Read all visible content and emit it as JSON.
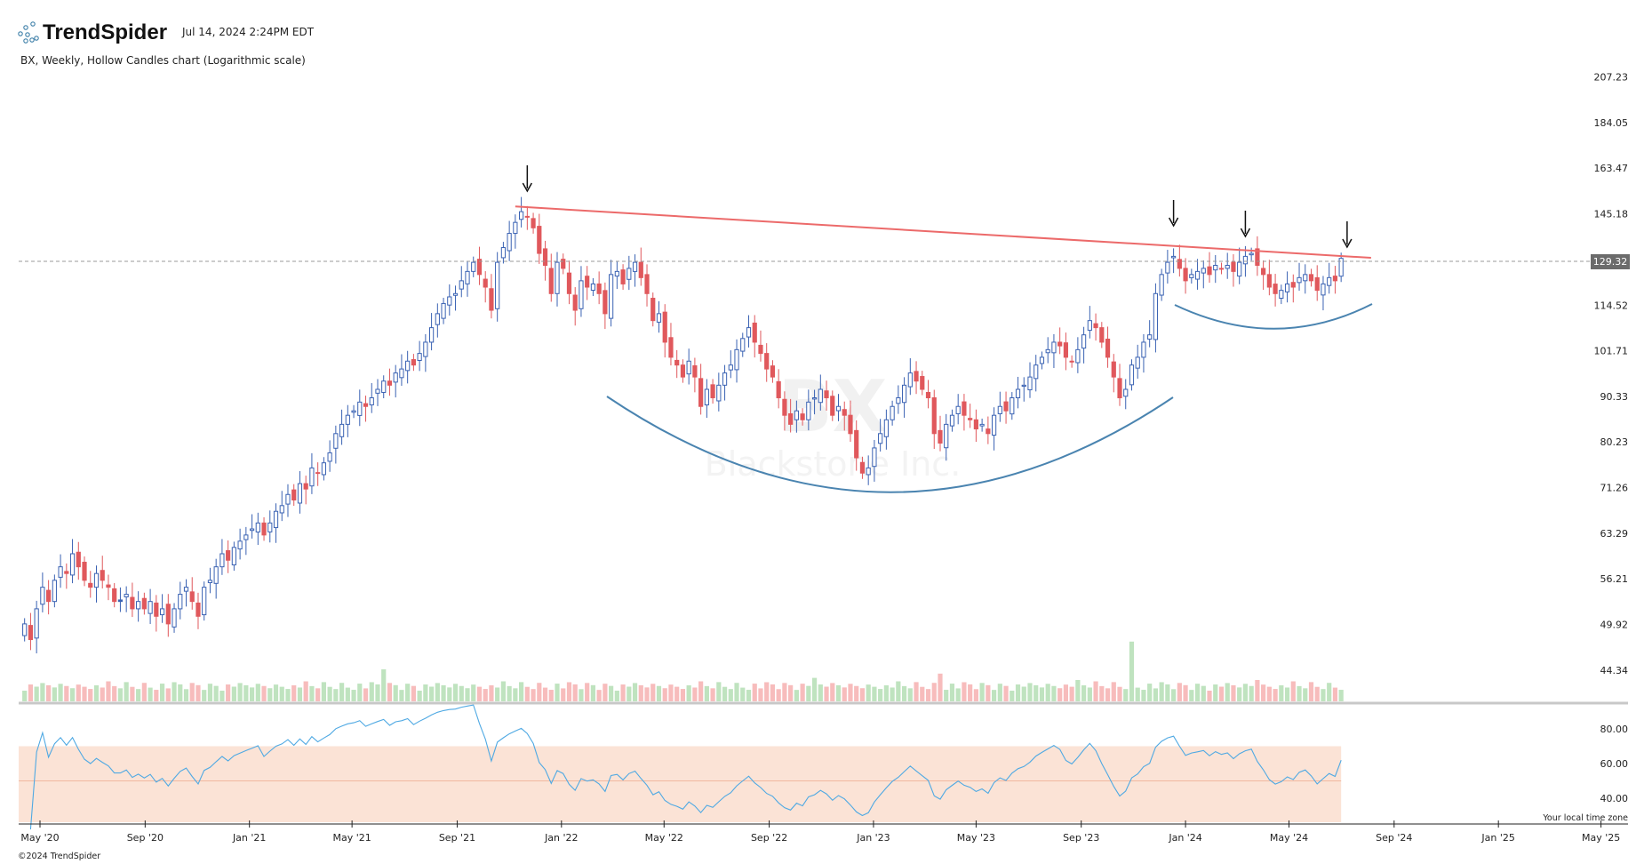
{
  "header": {
    "brand": "TrendSpider",
    "timestamp": "Jul 14, 2024 2:24PM EDT",
    "chart_title": "BX, Weekly, Hollow Candles chart (Logarithmic scale)"
  },
  "footer": {
    "copyright": "©2024 TrendSpider",
    "timezone_note": "Your local time zone"
  },
  "watermark": {
    "symbol": "BX",
    "name": "Blackstone Inc."
  },
  "colors": {
    "up": "#3a62b3",
    "down": "#e0585c",
    "vol_up": "#bfe3bf",
    "vol_down": "#f7bcbc",
    "rsi": "#4fa9e3",
    "rsi_band": "#fbe3d6",
    "trendline": "#ec6a6a",
    "curve": "#4a84b0",
    "last_price_bg": "#6b6b6b"
  },
  "chart_data": {
    "type": "candlestick",
    "symbol": "BX",
    "interval": "Weekly",
    "scale": "log",
    "first_week": "2020-04-13",
    "closes": [
      50,
      48,
      52,
      55,
      53,
      56,
      58,
      57,
      60,
      58,
      56,
      55,
      57,
      56,
      55,
      53,
      53,
      54,
      52,
      53,
      52,
      53,
      51,
      52,
      50,
      52,
      54,
      55,
      53,
      51,
      55,
      56,
      58,
      60,
      59,
      61,
      62,
      63,
      64,
      65,
      63,
      65,
      67,
      68,
      70,
      69,
      72,
      71,
      75,
      74,
      76,
      78,
      82,
      84,
      86,
      87,
      89,
      88,
      90,
      92,
      94,
      93,
      96,
      97,
      99,
      98,
      101,
      104,
      108,
      112,
      115,
      117,
      118,
      122,
      125,
      128,
      124,
      120,
      113,
      128,
      133,
      138,
      142,
      146,
      144,
      140,
      131,
      127,
      118,
      128,
      126,
      118,
      113,
      122,
      120,
      121,
      118,
      112,
      124,
      125,
      121,
      126,
      128,
      123,
      118,
      110,
      112,
      104,
      100,
      98,
      95,
      99,
      95,
      88,
      92,
      90,
      93,
      96,
      98,
      102,
      105,
      108,
      104,
      101,
      97,
      95,
      90,
      86,
      84,
      87,
      85,
      89,
      90,
      92,
      90,
      86,
      88,
      86,
      82,
      77,
      74,
      75,
      79,
      82,
      85,
      88,
      90,
      93,
      96,
      94,
      92,
      90,
      82,
      80,
      84,
      86,
      88,
      86,
      85,
      83,
      84,
      82,
      86,
      88,
      87,
      90,
      92,
      93,
      95,
      98,
      100,
      102,
      104,
      103,
      100,
      99,
      102,
      106,
      110,
      108,
      104,
      100,
      95,
      90,
      92,
      98,
      100,
      104,
      106,
      118,
      124,
      128,
      130,
      126,
      122,
      124,
      125,
      126,
      124,
      127,
      126,
      127,
      125,
      128,
      130,
      131,
      127,
      124,
      120,
      118,
      119,
      121,
      120,
      123,
      124,
      122,
      119,
      121,
      123,
      122,
      129.32
    ],
    "volume_relative_spikes": {
      "60": 3.0,
      "153": 2.6,
      "185": 5.6,
      "176": 2.0,
      "206": 2.0,
      "132": 2.2
    },
    "last_price": "129.32",
    "y_ticks": [
      "207.23",
      "184.05",
      "163.47",
      "145.18",
      "129.32",
      "114.52",
      "101.71",
      "90.33",
      "80.23",
      "71.26",
      "63.29",
      "56.21",
      "49.92",
      "44.34"
    ],
    "rsi": {
      "period": 14,
      "ticks": [
        "80.00",
        "60.00",
        "40.00"
      ],
      "band": [
        30,
        70
      ]
    },
    "x_ticks": [
      {
        "label": "May '20",
        "date": "2020-05-01"
      },
      {
        "label": "Sep '20",
        "date": "2020-09-01"
      },
      {
        "label": "Jan '21",
        "date": "2021-01-01"
      },
      {
        "label": "May '21",
        "date": "2021-05-01"
      },
      {
        "label": "Sep '21",
        "date": "2021-09-01"
      },
      {
        "label": "Jan '22",
        "date": "2022-01-01"
      },
      {
        "label": "May '22",
        "date": "2022-05-01"
      },
      {
        "label": "Sep '22",
        "date": "2022-09-01"
      },
      {
        "label": "Jan '23",
        "date": "2023-01-01"
      },
      {
        "label": "May '23",
        "date": "2023-05-01"
      },
      {
        "label": "Sep '23",
        "date": "2023-09-01"
      },
      {
        "label": "Jan '24",
        "date": "2024-01-01"
      },
      {
        "label": "May '24",
        "date": "2024-05-01"
      },
      {
        "label": "Sep '24",
        "date": "2024-09-01"
      },
      {
        "label": "Jan '25",
        "date": "2025-01-01"
      },
      {
        "label": "May '25",
        "date": "2025-05-01"
      }
    ],
    "annotations": {
      "resistance_line": {
        "from": {
          "date": "2021-11-08",
          "price": 148
        },
        "to": {
          "date": "2024-08-05",
          "price": 129.5
        }
      },
      "arrows_at": [
        "2021-11-22",
        "2023-12-18",
        "2024-03-11",
        "2024-07-08"
      ],
      "cup": "rounded bottom Jan 2022 – Dec 2023",
      "handle": "rounded handle Dec 2023 – Aug 2024"
    }
  }
}
